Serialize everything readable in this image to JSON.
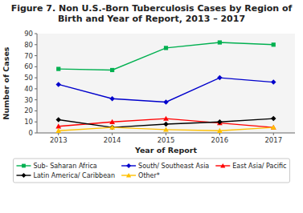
{
  "chart_data": {
    "type": "line",
    "title": "Figure 7. Non U.S.-Born Tuberculosis Cases by Region of Birth and Year of Report, 2013 – 2017",
    "x_label": "Year of Report",
    "y_label": "Number of Cases",
    "x": [
      2013,
      2014,
      2015,
      2016,
      2017
    ],
    "xlim": [
      2012.6,
      2017.4
    ],
    "xticks": [
      2013,
      2014,
      2015,
      2016,
      2017
    ],
    "ylim": [
      0,
      90
    ],
    "yticks": [
      0,
      10,
      20,
      30,
      40,
      50,
      60,
      70,
      80,
      90
    ],
    "grid": false,
    "legend": "bottom",
    "series": [
      {
        "name": "Sub- Saharan Africa",
        "values": [
          58,
          57,
          77,
          82,
          80
        ],
        "color": "#00B050",
        "marker": "square",
        "line_style": "solid"
      },
      {
        "name": "South/ Southeast Asia",
        "values": [
          44,
          31,
          28,
          50,
          46
        ],
        "color": "#0000CC",
        "marker": "diamond",
        "line_style": "solid"
      },
      {
        "name": "East Asia/ Pacific",
        "values": [
          6,
          10,
          13,
          9,
          5
        ],
        "color": "#FF0000",
        "marker": "triangle-up",
        "line_style": "solid"
      },
      {
        "name": "Latin America/ Caribbean",
        "values": [
          12,
          5,
          8,
          10,
          13
        ],
        "color": "#000000",
        "marker": "diamond",
        "line_style": "solid"
      },
      {
        "name": "Other*",
        "values": [
          2,
          5,
          3,
          2,
          5
        ],
        "color": "#FFC000",
        "marker": "triangle-up",
        "line_style": "solid"
      }
    ]
  }
}
